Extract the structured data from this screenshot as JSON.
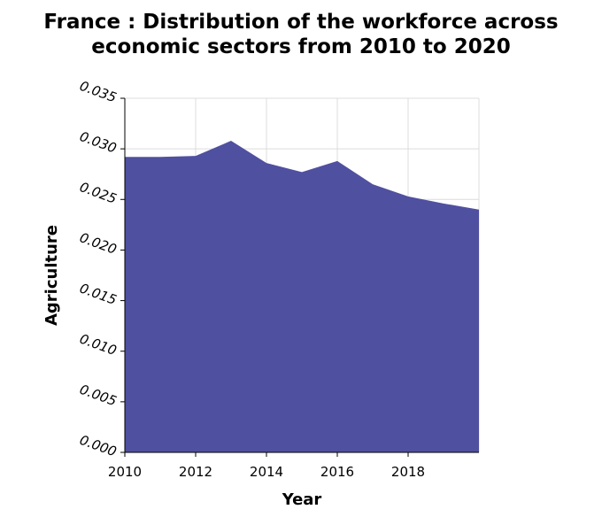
{
  "chart_data": {
    "type": "area",
    "title_lines": [
      "France : Distribution of the workforce across",
      "economic sectors from 2010 to 2020"
    ],
    "xlabel": "Year",
    "ylabel": "Agriculture",
    "xlim": [
      2010,
      2020
    ],
    "ylim": [
      0.0,
      0.035
    ],
    "x_ticks": [
      2010,
      2012,
      2014,
      2016,
      2018
    ],
    "x_tick_labels": [
      "2010",
      "2012",
      "2014",
      "2016",
      "2018"
    ],
    "y_ticks": [
      0.0,
      0.005,
      0.01,
      0.015,
      0.02,
      0.025,
      0.03,
      0.035
    ],
    "y_tick_labels": [
      "0.000",
      "0.005",
      "0.010",
      "0.015",
      "0.020",
      "0.025",
      "0.030",
      "0.035"
    ],
    "grid": true,
    "fill_color": "#5050a0",
    "series": [
      {
        "x": [
          2010,
          2011,
          2012,
          2013,
          2014,
          2015,
          2016,
          2017,
          2018,
          2019,
          2020
        ],
        "values": [
          0.0292,
          0.0292,
          0.0293,
          0.0308,
          0.0286,
          0.0277,
          0.0288,
          0.0265,
          0.0253,
          0.0246,
          0.024
        ]
      }
    ]
  }
}
